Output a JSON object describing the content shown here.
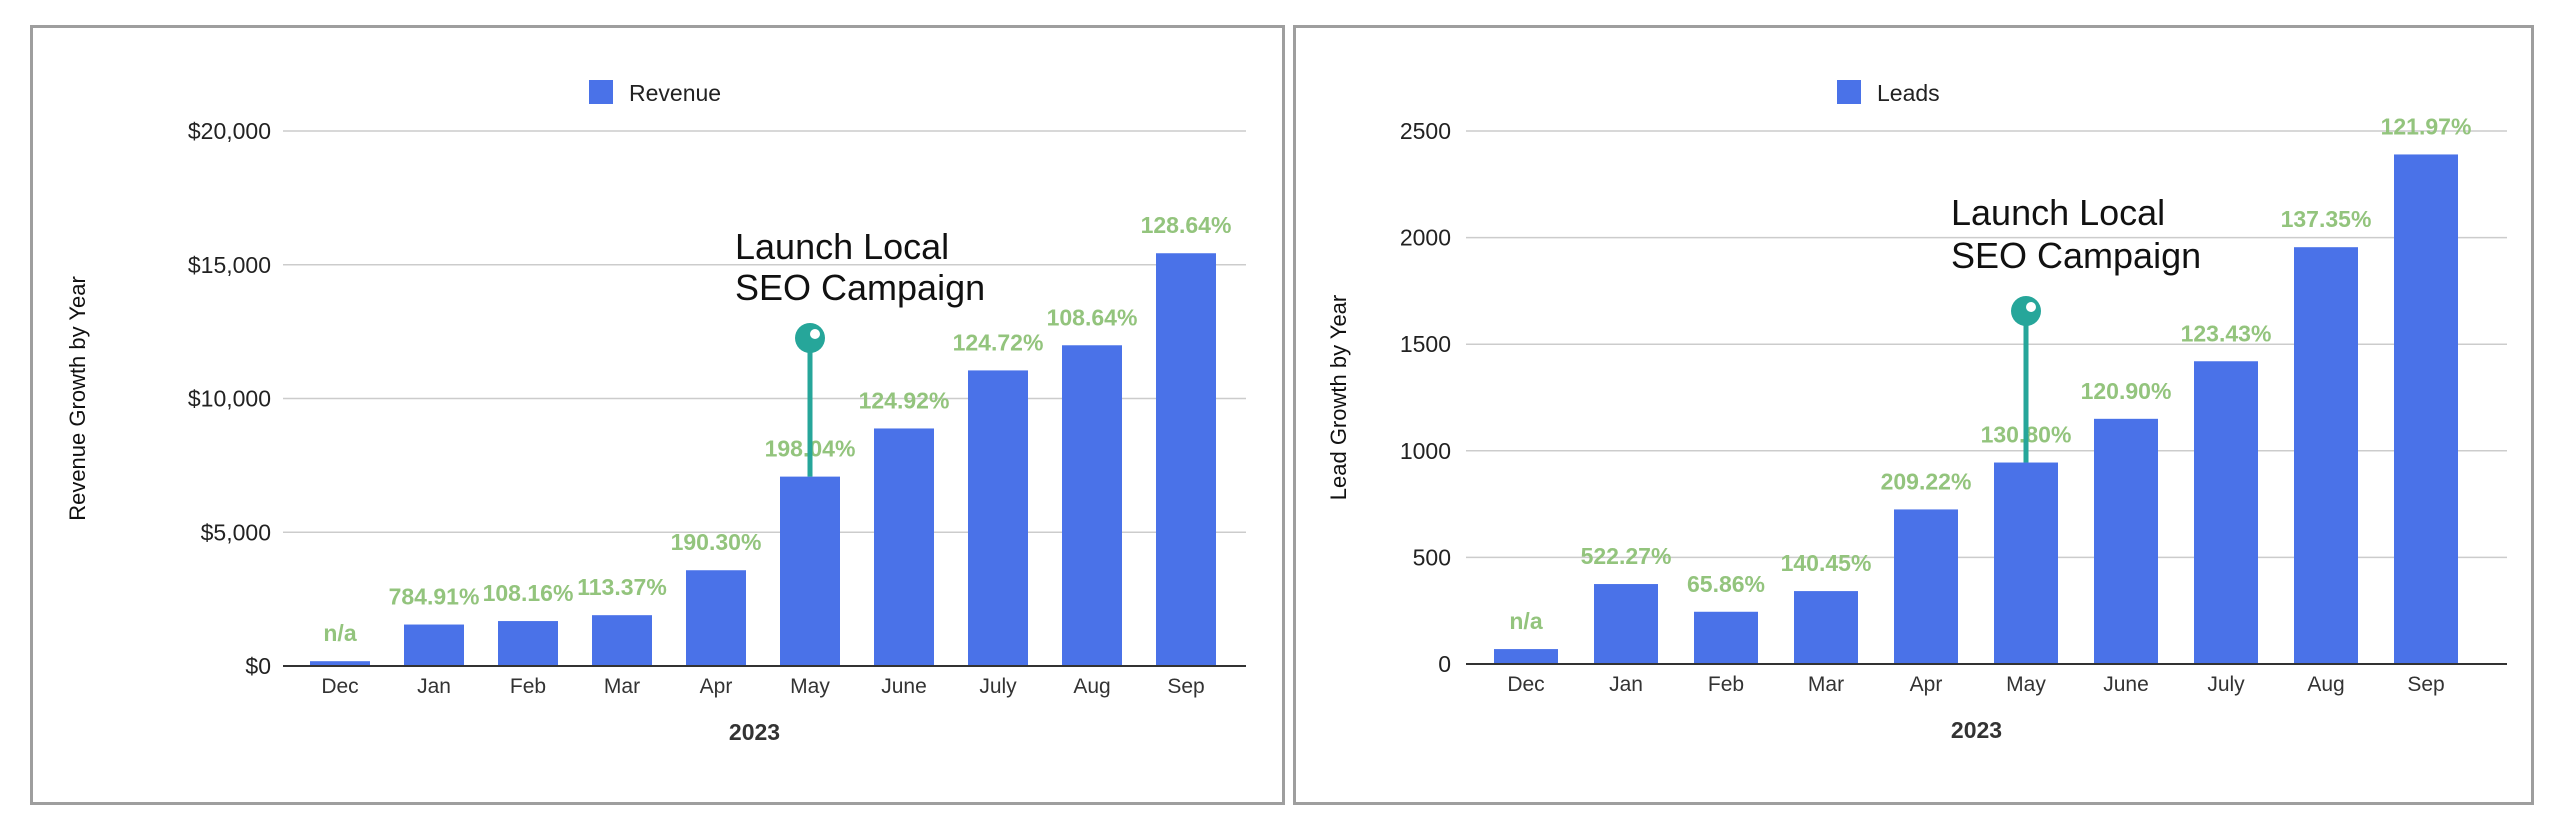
{
  "chart_data": [
    {
      "type": "bar",
      "legend": "Revenue",
      "ylabel": "Revenue Growth by Year",
      "xlabel": "2023",
      "ylim": [
        0,
        20000
      ],
      "yticks": [
        0,
        5000,
        10000,
        15000,
        20000
      ],
      "ytick_labels": [
        "$0",
        "$5,000",
        "$10,000",
        "$15,000",
        "$20,000"
      ],
      "categories": [
        "Dec",
        "Jan",
        "Feb",
        "Mar",
        "Apr",
        "May",
        "June",
        "July",
        "Aug",
        "Sep"
      ],
      "values": [
        180,
        1550,
        1680,
        1900,
        3580,
        7080,
        8880,
        11050,
        11990,
        15430
      ],
      "data_labels": [
        "n/a",
        "784.91%",
        "108.16%",
        "113.37%",
        "190.30%",
        "198.04%",
        "124.92%",
        "124.72%",
        "108.64%",
        "128.64%"
      ],
      "annotation": {
        "lines": [
          "Launch Local",
          "SEO Campaign"
        ],
        "category": "May"
      },
      "colors": {
        "bar": "#4a72e8",
        "label": "#93c47d",
        "marker": "#26a69a",
        "grid": "#cccccc"
      }
    },
    {
      "type": "bar",
      "legend": "Leads",
      "ylabel": "Lead Growth by Year",
      "xlabel": "2023",
      "ylim": [
        0,
        2500
      ],
      "yticks": [
        0,
        500,
        1000,
        1500,
        2000,
        2500
      ],
      "ytick_labels": [
        "0",
        "500",
        "1000",
        "1500",
        "2000",
        "2500"
      ],
      "categories": [
        "Dec",
        "Jan",
        "Feb",
        "Mar",
        "Apr",
        "May",
        "June",
        "July",
        "Aug",
        "Sep"
      ],
      "values": [
        70,
        375,
        245,
        342,
        725,
        945,
        1150,
        1420,
        1955,
        2390
      ],
      "data_labels": [
        "n/a",
        "522.27%",
        "65.86%",
        "140.45%",
        "209.22%",
        "130.80%",
        "120.90%",
        "123.43%",
        "137.35%",
        "121.97%"
      ],
      "annotation": {
        "lines": [
          "Launch Local",
          "SEO Campaign"
        ],
        "category": "May"
      },
      "colors": {
        "bar": "#4a72e8",
        "label": "#93c47d",
        "marker": "#26a69a",
        "grid": "#cccccc"
      }
    }
  ]
}
